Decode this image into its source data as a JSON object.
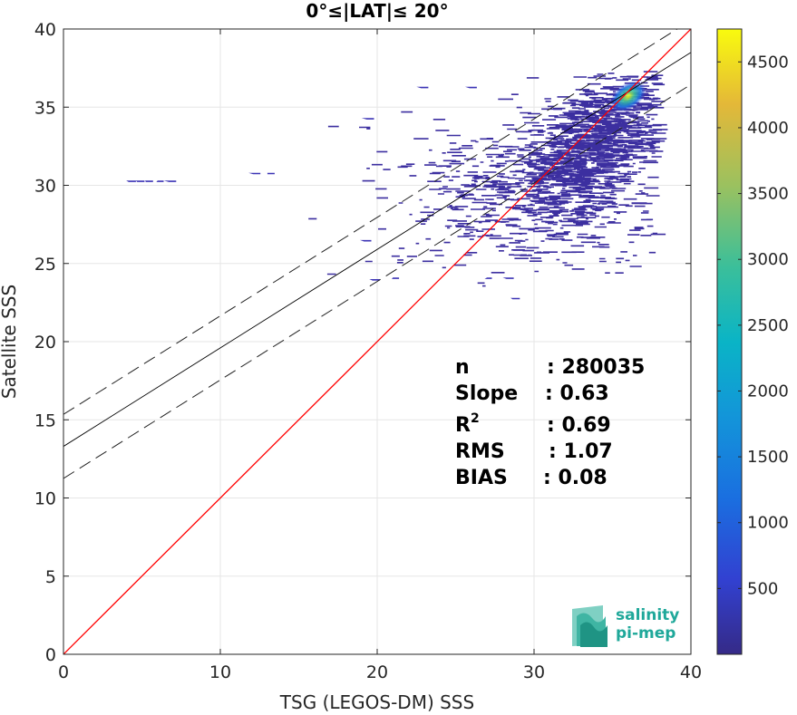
{
  "chart_data": {
    "type": "heatmap",
    "title": "0°≤|LAT|≤ 20°",
    "xlabel": "TSG (LEGOS-DM) SSS",
    "ylabel": "Satellite SSS",
    "xlim": [
      0,
      40
    ],
    "ylim": [
      0,
      40
    ],
    "xticks": [
      "0",
      "10",
      "20",
      "30",
      "40"
    ],
    "yticks": [
      "0",
      "5",
      "10",
      "15",
      "20",
      "25",
      "30",
      "35",
      "40"
    ],
    "grid": true,
    "colorbar": {
      "range": [
        0,
        4750
      ],
      "ticks": [
        "500",
        "1000",
        "1500",
        "2000",
        "2500",
        "3000",
        "3500",
        "4000",
        "4500"
      ],
      "colormap": "parula"
    },
    "identity_line": {
      "x": [
        0,
        40
      ],
      "y": [
        0,
        40
      ],
      "color": "#ff0000"
    },
    "regression_line": {
      "intercept": 13.3,
      "slope": 0.63,
      "color": "#000000"
    },
    "confidence_band": {
      "offset": 2.05,
      "style": "dashed"
    },
    "density_hotspot": {
      "x": 36.0,
      "y": 35.7
    },
    "stats": {
      "n": "280035",
      "slope": "0.63",
      "r2": "0.69",
      "rms": "1.07",
      "bias": "0.08"
    }
  },
  "stats_labels": {
    "n": "n",
    "slope": "Slope",
    "r2_base": "R",
    "r2_sup": "2",
    "rms": "RMS",
    "bias": "BIAS"
  },
  "stats_values": {
    "n": ": 280035",
    "slope": ": 0.63",
    "r2": ": 0.69",
    "rms": ": 1.07",
    "bias": ": 0.08"
  },
  "logo": {
    "line1": "salinity",
    "line2": "pi-mep",
    "icon": "salinity-waves-icon",
    "color": "#1fa89a"
  }
}
